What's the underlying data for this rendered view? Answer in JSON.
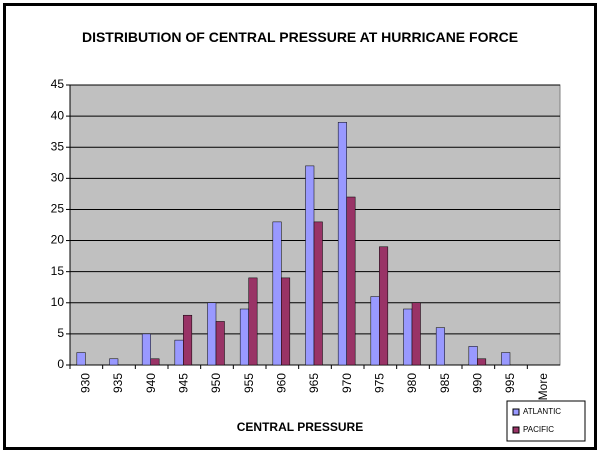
{
  "chart_data": {
    "type": "bar",
    "title": "DISTRIBUTION OF CENTRAL PRESSURE AT HURRICANE FORCE",
    "x_label": "CENTRAL PRESSURE",
    "categories": [
      "930",
      "935",
      "940",
      "945",
      "950",
      "955",
      "960",
      "965",
      "970",
      "975",
      "980",
      "985",
      "990",
      "995",
      "More"
    ],
    "series": [
      {
        "name": "ATLANTIC",
        "color": "#9999ff",
        "values": [
          2,
          1,
          5,
          4,
          10,
          9,
          23,
          32,
          39,
          11,
          9,
          6,
          3,
          2,
          0
        ]
      },
      {
        "name": "PACIFIC",
        "color": "#993366",
        "values": [
          0,
          0,
          1,
          8,
          7,
          14,
          14,
          23,
          27,
          19,
          10,
          0,
          1,
          0,
          0
        ]
      }
    ],
    "ylim": [
      0,
      45
    ],
    "yticks": [
      0,
      5,
      10,
      15,
      20,
      25,
      30,
      35,
      40,
      45
    ],
    "grid": true,
    "legend": "bottom-right",
    "plot_background": "#c0c0c0"
  }
}
